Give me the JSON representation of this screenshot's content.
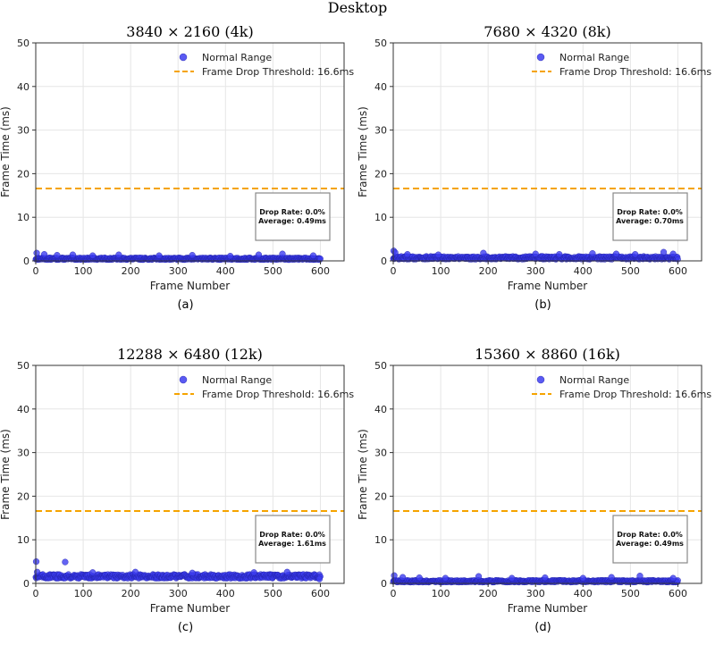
{
  "figure": {
    "title": "Desktop"
  },
  "chart_data": [
    {
      "type": "scatter",
      "title": "3840 × 2160 (4k)",
      "sublabel": "(a)",
      "xlabel": "Frame Number",
      "ylabel": "Frame Time (ms)",
      "xlim": [
        0,
        650
      ],
      "ylim": [
        0,
        50
      ],
      "xticks": [
        0,
        100,
        200,
        300,
        400,
        500,
        600
      ],
      "yticks": [
        0,
        10,
        20,
        30,
        40,
        50
      ],
      "grid": true,
      "legend_position": "top-right",
      "series": [
        {
          "name": "Normal Range",
          "kind": "scatter",
          "color": "#3d3df0",
          "frames": 600,
          "baseline_ms": 0.49,
          "spread_ms": 0.4,
          "spikes": [
            [
              2,
              1.8
            ],
            [
              18,
              1.5
            ],
            [
              45,
              1.3
            ],
            [
              78,
              1.4
            ],
            [
              120,
              1.2
            ],
            [
              175,
              1.4
            ],
            [
              260,
              1.2
            ],
            [
              330,
              1.3
            ],
            [
              410,
              1.1
            ],
            [
              470,
              1.4
            ],
            [
              520,
              1.6
            ],
            [
              585,
              1.2
            ]
          ]
        },
        {
          "name": "Frame Drop Threshold: 16.6ms",
          "kind": "hline",
          "y": 16.6,
          "color": "#f5a300"
        }
      ],
      "stats": {
        "drop_rate": "Drop Rate: 0.0%",
        "average": "Average: 0.49ms"
      }
    },
    {
      "type": "scatter",
      "title": "7680 × 4320 (8k)",
      "sublabel": "(b)",
      "xlabel": "Frame Number",
      "ylabel": "Frame Time (ms)",
      "xlim": [
        0,
        650
      ],
      "ylim": [
        0,
        50
      ],
      "xticks": [
        0,
        100,
        200,
        300,
        400,
        500,
        600
      ],
      "yticks": [
        0,
        10,
        20,
        30,
        40,
        50
      ],
      "grid": true,
      "legend_position": "top-right",
      "series": [
        {
          "name": "Normal Range",
          "kind": "scatter",
          "color": "#3d3df0",
          "frames": 600,
          "baseline_ms": 0.7,
          "spread_ms": 0.6,
          "spikes": [
            [
              1,
              2.3
            ],
            [
              4,
              1.9
            ],
            [
              30,
              1.5
            ],
            [
              95,
              1.4
            ],
            [
              190,
              1.8
            ],
            [
              300,
              1.6
            ],
            [
              350,
              1.5
            ],
            [
              420,
              1.7
            ],
            [
              470,
              1.6
            ],
            [
              510,
              1.5
            ],
            [
              570,
              2.0
            ],
            [
              590,
              1.6
            ]
          ]
        },
        {
          "name": "Frame Drop Threshold: 16.6ms",
          "kind": "hline",
          "y": 16.6,
          "color": "#f5a300"
        }
      ],
      "stats": {
        "drop_rate": "Drop Rate: 0.0%",
        "average": "Average: 0.70ms"
      }
    },
    {
      "type": "scatter",
      "title": "12288 × 6480 (12k)",
      "sublabel": "(c)",
      "xlabel": "Frame Number",
      "ylabel": "Frame Time (ms)",
      "xlim": [
        0,
        650
      ],
      "ylim": [
        0,
        50
      ],
      "xticks": [
        0,
        100,
        200,
        300,
        400,
        500,
        600
      ],
      "yticks": [
        0,
        10,
        20,
        30,
        40,
        50
      ],
      "grid": true,
      "legend_position": "top-right",
      "series": [
        {
          "name": "Normal Range",
          "kind": "scatter",
          "color": "#3d3df0",
          "frames": 600,
          "baseline_ms": 1.61,
          "spread_ms": 0.8,
          "spikes": [
            [
              1,
              5.0
            ],
            [
              62,
              4.9
            ],
            [
              3,
              2.6
            ],
            [
              120,
              2.5
            ],
            [
              210,
              2.6
            ],
            [
              330,
              2.4
            ],
            [
              460,
              2.5
            ],
            [
              530,
              2.6
            ],
            [
              598,
              1.0
            ]
          ]
        },
        {
          "name": "Frame Drop Threshold: 16.6ms",
          "kind": "hline",
          "y": 16.6,
          "color": "#f5a300"
        }
      ],
      "stats": {
        "drop_rate": "Drop Rate: 0.0%",
        "average": "Average: 1.61ms"
      }
    },
    {
      "type": "scatter",
      "title": "15360 × 8860 (16k)",
      "sublabel": "(d)",
      "xlabel": "Frame Number",
      "ylabel": "Frame Time (ms)",
      "xlim": [
        0,
        650
      ],
      "ylim": [
        0,
        50
      ],
      "xticks": [
        0,
        100,
        200,
        300,
        400,
        500,
        600
      ],
      "yticks": [
        0,
        10,
        20,
        30,
        40,
        50
      ],
      "grid": true,
      "legend_position": "top-right",
      "series": [
        {
          "name": "Normal Range",
          "kind": "scatter",
          "color": "#3d3df0",
          "frames": 600,
          "baseline_ms": 0.49,
          "spread_ms": 0.4,
          "spikes": [
            [
              2,
              1.8
            ],
            [
              20,
              1.4
            ],
            [
              55,
              1.3
            ],
            [
              110,
              1.2
            ],
            [
              180,
              1.6
            ],
            [
              250,
              1.2
            ],
            [
              320,
              1.3
            ],
            [
              400,
              1.2
            ],
            [
              460,
              1.4
            ],
            [
              520,
              1.7
            ],
            [
              590,
              1.2
            ]
          ]
        },
        {
          "name": "Frame Drop Threshold: 16.6ms",
          "kind": "hline",
          "y": 16.6,
          "color": "#f5a300"
        }
      ],
      "stats": {
        "drop_rate": "Drop Rate: 0.0%",
        "average": "Average: 0.49ms"
      }
    }
  ]
}
